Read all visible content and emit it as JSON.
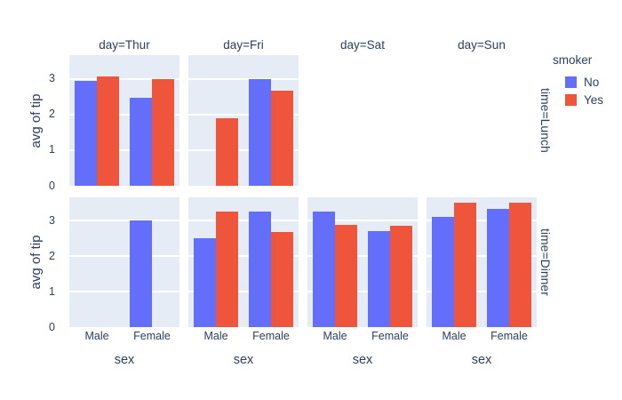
{
  "font_color": "#2a3f5f",
  "colors": {
    "plot_background": "#e5ecf6",
    "gridline": "#ffffff",
    "paper": "#ffffff",
    "smoker_no": "#636efa",
    "smoker_yes": "#ef553b"
  },
  "legend": {
    "title": "smoker",
    "items": [
      {
        "label": "No",
        "color": "#636efa"
      },
      {
        "label": "Yes",
        "color": "#ef553b"
      }
    ]
  },
  "chart_data": {
    "type": "bar",
    "barmode": "group",
    "title": "",
    "xlabel": "sex",
    "ylabel": "avg of tip",
    "facet_col_labels": [
      "day=Thur",
      "day=Fri",
      "day=Sat",
      "day=Sun"
    ],
    "facet_row_labels": [
      "time=Lunch",
      "time=Dinner"
    ],
    "categories": [
      "Male",
      "Female"
    ],
    "yticks": [
      "0",
      "1",
      "2",
      "3"
    ],
    "ylim": [
      0,
      3.66
    ],
    "legend_title": "smoker",
    "legend_position": "right",
    "grid": true,
    "series_names": [
      "No",
      "Yes"
    ],
    "series_colors": [
      "#636efa",
      "#ef553b"
    ],
    "facets": [
      {
        "day": "Thur",
        "time": "Lunch",
        "empty": false,
        "bars": {
          "No": [
            2.94,
            2.46
          ],
          "Yes": [
            3.06,
            3.0
          ]
        }
      },
      {
        "day": "Fri",
        "time": "Lunch",
        "empty": false,
        "bars": {
          "No": [
            null,
            3.0
          ],
          "Yes": [
            1.9,
            2.66
          ]
        }
      },
      {
        "day": "Sat",
        "time": "Lunch",
        "empty": true,
        "bars": {
          "No": [
            null,
            null
          ],
          "Yes": [
            null,
            null
          ]
        }
      },
      {
        "day": "Sun",
        "time": "Lunch",
        "empty": true,
        "bars": {
          "No": [
            null,
            null
          ],
          "Yes": [
            null,
            null
          ]
        }
      },
      {
        "day": "Thur",
        "time": "Dinner",
        "empty": false,
        "bars": {
          "No": [
            null,
            3.0
          ],
          "Yes": [
            null,
            null
          ]
        }
      },
      {
        "day": "Fri",
        "time": "Dinner",
        "empty": false,
        "bars": {
          "No": [
            2.5,
            3.25
          ],
          "Yes": [
            3.25,
            2.68
          ]
        }
      },
      {
        "day": "Sat",
        "time": "Dinner",
        "empty": false,
        "bars": {
          "No": [
            3.26,
            2.72
          ],
          "Yes": [
            2.88,
            2.87
          ]
        }
      },
      {
        "day": "Sun",
        "time": "Dinner",
        "empty": false,
        "bars": {
          "No": [
            3.11,
            3.33
          ],
          "Yes": [
            3.52,
            3.5
          ]
        }
      }
    ]
  }
}
